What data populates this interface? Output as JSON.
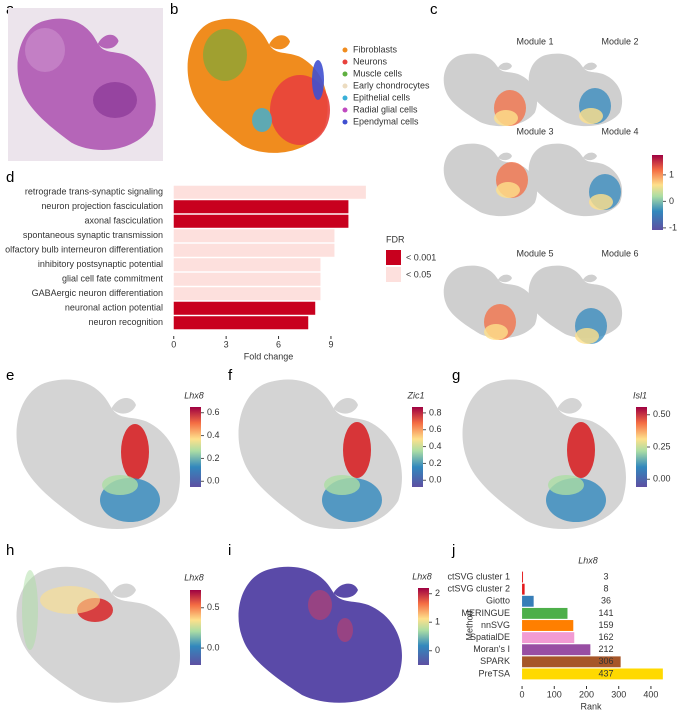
{
  "panels": {
    "labels": [
      "a",
      "b",
      "c",
      "d",
      "e",
      "f",
      "g",
      "h",
      "i",
      "j"
    ]
  },
  "panel_b": {
    "legend": [
      {
        "label": "Fibroblasts",
        "color": "#f08c1e"
      },
      {
        "label": "Neurons",
        "color": "#e8413c"
      },
      {
        "label": "Muscle cells",
        "color": "#5fb040"
      },
      {
        "label": "Early chondrocytes",
        "color": "#ecdcc0"
      },
      {
        "label": "Epithelial cells",
        "color": "#3ab0d8"
      },
      {
        "label": "Radial glial cells",
        "color": "#c04ac0"
      },
      {
        "label": "Ependymal cells",
        "color": "#4050d0"
      }
    ]
  },
  "panel_c": {
    "modules": [
      "Module 1",
      "Module 2",
      "Module 3",
      "Module 4",
      "Module 5",
      "Module 6"
    ],
    "colorbar_lim": [
      -1.08,
      1.75
    ],
    "colorbar_ticks": [
      1,
      0,
      -1
    ]
  },
  "panel_e": {
    "title": "Lhx8",
    "colorbar_lim": [
      -0.05,
      0.65
    ],
    "colorbar_ticks": [
      0.6,
      0.4,
      0.2,
      {
        "value": 0,
        "label": "0.0"
      }
    ]
  },
  "panel_f": {
    "title": "Zic1",
    "colorbar_lim": [
      -0.08,
      0.87
    ],
    "colorbar_ticks": [
      0.8,
      0.6,
      0.4,
      0.2,
      {
        "value": 0,
        "label": "0.0"
      }
    ]
  },
  "panel_g": {
    "title": "Isl1",
    "colorbar_lim": [
      -0.06,
      0.56
    ],
    "colorbar_ticks": [
      {
        "value": 0.5,
        "label": "0.50"
      },
      {
        "value": 0.25,
        "label": "0.25"
      },
      {
        "value": 0,
        "label": "0.00"
      }
    ]
  },
  "panel_h": {
    "title": "Lhx8",
    "colorbar_lim": [
      -0.21,
      0.72
    ],
    "colorbar_ticks": [
      0.5,
      {
        "value": 0,
        "label": "0.0"
      }
    ]
  },
  "panel_i": {
    "title": "Lhx8",
    "colorbar_lim": [
      -0.5,
      2.2
    ],
    "colorbar_ticks": [
      2,
      1,
      0
    ]
  },
  "chart_data": [
    {
      "type": "bar",
      "orientation": "horizontal",
      "categories": [
        "retrograde trans-synaptic signaling",
        "neuron projection fasciculation",
        "axonal fasciculation",
        "spontaneous synaptic transmission",
        "olfactory bulb interneuron differentiation",
        "inhibitory postsynaptic potential",
        "glial cell fate commitment",
        "GABAergic neuron differentiation",
        "neuronal action potential",
        "neuron recognition"
      ],
      "values": [
        11.0,
        10.0,
        10.0,
        9.2,
        9.2,
        8.4,
        8.4,
        8.4,
        8.1,
        7.7
      ],
      "colors": [
        "#fde0dd",
        "#c8001e",
        "#c8001e",
        "#fde0dd",
        "#fde0dd",
        "#fde0dd",
        "#fde0dd",
        "#fde0dd",
        "#c8001e",
        "#c8001e"
      ],
      "xlim": [
        -0.5,
        11.35
      ],
      "xticks": [
        0,
        3,
        6,
        9
      ],
      "xlabel": "Fold change",
      "legend": {
        "title": "FDR",
        "items": [
          {
            "label": "< 0.001",
            "color": "#c8001e"
          },
          {
            "label": "< 0.05",
            "color": "#fde0dd"
          }
        ]
      }
    },
    {
      "type": "bar",
      "orientation": "horizontal",
      "title": "Lhx8",
      "categories": [
        "ctSVG cluster 1",
        "ctSVG cluster 2",
        "Giotto",
        "MERINGUE",
        "nnSVG",
        "SpatialDE",
        "Moran's I",
        "SPARK",
        "PreTSA"
      ],
      "values": [
        3,
        8,
        36,
        141,
        159,
        162,
        212,
        306,
        437
      ],
      "colors": [
        "#e41a1c",
        "#e41a1c",
        "#377eb8",
        "#4daf4a",
        "#ff7f00",
        "#f29bd3",
        "#984ea3",
        "#a65628",
        "#ffd900"
      ],
      "xlim": [
        -25,
        453
      ],
      "xticks": [
        0,
        100,
        200,
        300,
        400
      ],
      "xlabel": "Rank",
      "ylabel": "Method",
      "data_labels": true
    }
  ]
}
